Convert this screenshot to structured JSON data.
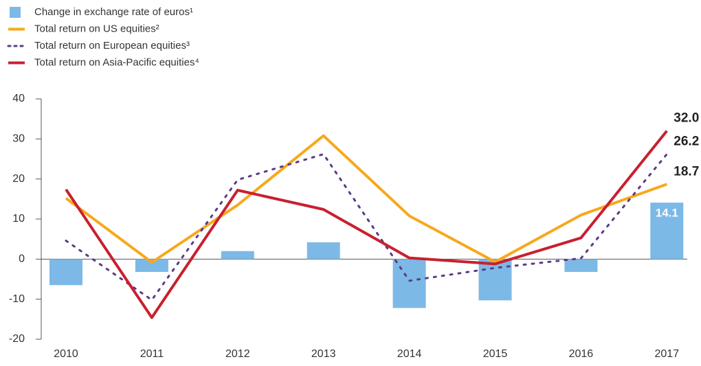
{
  "chart_data": {
    "type": "bar-line",
    "categories": [
      "2010",
      "2011",
      "2012",
      "2013",
      "2014",
      "2015",
      "2016",
      "2017"
    ],
    "series": [
      {
        "name": "Change in exchange rate of euros¹",
        "type": "bar",
        "color": "#7cb9e6",
        "values": [
          -6.5,
          -3.2,
          2.0,
          4.2,
          -12.2,
          -10.3,
          -3.2,
          14.1
        ],
        "value_labels": [
          null,
          null,
          null,
          null,
          null,
          null,
          null,
          "14.1"
        ]
      },
      {
        "name": "Total return on US equities²",
        "type": "line",
        "style": "solid",
        "color": "#f7a81b",
        "values": [
          15.2,
          -0.8,
          13.5,
          30.8,
          10.8,
          -0.7,
          11.0,
          18.7
        ],
        "value_labels": [
          null,
          null,
          null,
          null,
          null,
          null,
          null,
          "18.7"
        ]
      },
      {
        "name": "Total return on European equities³",
        "type": "line",
        "style": "dotted",
        "color": "#5b3a86",
        "values": [
          4.6,
          -10.2,
          19.8,
          26.2,
          -5.4,
          -2.2,
          0.2,
          26.2
        ],
        "value_labels": [
          null,
          null,
          null,
          null,
          null,
          null,
          null,
          "26.2"
        ]
      },
      {
        "name": "Total return on Asia-Pacific equities⁴",
        "type": "line",
        "style": "solid",
        "color": "#c8202f",
        "values": [
          17.4,
          -14.6,
          17.2,
          12.4,
          0.3,
          -1.2,
          5.3,
          32.0
        ],
        "value_labels": [
          null,
          null,
          null,
          null,
          null,
          null,
          null,
          "32.0"
        ]
      }
    ],
    "ylim": [
      -20,
      40
    ],
    "yticks": [
      -20,
      -10,
      0,
      10,
      20,
      30,
      40
    ],
    "legend": "top-left"
  }
}
